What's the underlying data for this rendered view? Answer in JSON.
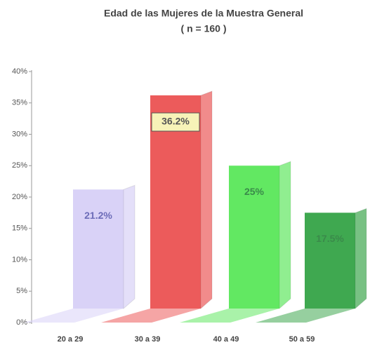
{
  "chart_data": {
    "type": "bar3d",
    "title": "Edad de las Mujeres de la Muestra General",
    "subtitle": "( n = 160 )",
    "categories": [
      "20 a 29",
      "30 a 39",
      "40 a 49",
      "50 a 59"
    ],
    "values": [
      21.2,
      36.2,
      25,
      17.5
    ],
    "value_labels": [
      "21.2%",
      "36.2%",
      "25%",
      "17.5%"
    ],
    "colors": [
      "#d9d2f7",
      "#ec5b5b",
      "#62e862",
      "#3fa850"
    ],
    "ylim": [
      0,
      40
    ],
    "yticks": [
      {
        "value": 0,
        "label": "0%"
      },
      {
        "value": 5,
        "label": "5%"
      },
      {
        "value": 10,
        "label": "10%"
      },
      {
        "value": 15,
        "label": "15%"
      },
      {
        "value": 20,
        "label": "20%"
      },
      {
        "value": 25,
        "label": "25%"
      },
      {
        "value": 30,
        "label": "30%"
      },
      {
        "value": 35,
        "label": "35%"
      },
      {
        "value": 40,
        "label": "40%"
      }
    ]
  }
}
